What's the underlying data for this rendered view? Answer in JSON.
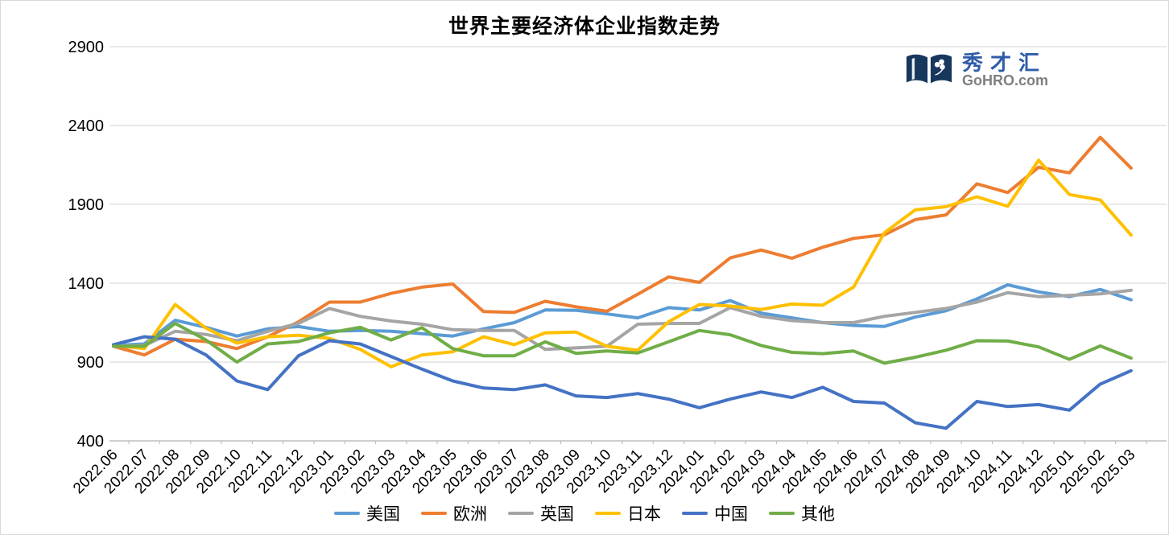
{
  "header": {
    "title": "世界主要经济体企业指数走势"
  },
  "logo": {
    "icon": "open-book-clover-icon",
    "brand": "秀才汇",
    "domain": "GoHRO.com",
    "brand_color": "#2e5ca8",
    "domain_color": "#7f7f7f",
    "book_color": "#17375d"
  },
  "chart_data": {
    "type": "line",
    "title": "世界主要经济体企业指数走势",
    "xlabel": "",
    "ylabel": "",
    "ylim": [
      400,
      2900
    ],
    "yticks": [
      400,
      900,
      1400,
      1900,
      2400,
      2900
    ],
    "grid": "horizontal",
    "gridline_color": "#d9d9d9",
    "axis_line_color": "#bfbfbf",
    "legend_position": "bottom",
    "x_tick_rotation": -45,
    "categories": [
      "2022.06",
      "2022.07",
      "2022.08",
      "2022.09",
      "2022.10",
      "2022.11",
      "2022.12",
      "2023.01",
      "2023.02",
      "2023.03",
      "2023.04",
      "2023.05",
      "2023.06",
      "2023.07",
      "2023.08",
      "2023.09",
      "2023.10",
      "2023.11",
      "2023.12",
      "2024.01",
      "2024.02",
      "2024.03",
      "2024.04",
      "2024.05",
      "2024.06",
      "2024.07",
      "2024.08",
      "2024.09",
      "2024.10",
      "2024.11",
      "2024.12",
      "2025.01",
      "2025.02",
      "2025.03"
    ],
    "series": [
      {
        "name": "美国",
        "color": "#5b9bd5",
        "values": [
          1005,
          1015,
          1165,
          1120,
          1065,
          1110,
          1125,
          1095,
          1100,
          1095,
          1080,
          1065,
          1110,
          1150,
          1230,
          1228,
          1205,
          1180,
          1245,
          1230,
          1290,
          1210,
          1180,
          1150,
          1132,
          1126,
          1185,
          1225,
          1300,
          1390,
          1345,
          1315,
          1360,
          1295
        ]
      },
      {
        "name": "欧洲",
        "color": "#ed7d31",
        "values": [
          1000,
          945,
          1045,
          1030,
          985,
          1060,
          1155,
          1280,
          1280,
          1335,
          1375,
          1395,
          1220,
          1215,
          1285,
          1250,
          1222,
          1330,
          1440,
          1405,
          1560,
          1610,
          1558,
          1628,
          1684,
          1707,
          1803,
          1833,
          2030,
          1975,
          2135,
          2100,
          2325,
          2130
        ]
      },
      {
        "name": "英国",
        "color": "#a5a5a5",
        "values": [
          1000,
          1005,
          1095,
          1075,
          1035,
          1095,
          1145,
          1240,
          1190,
          1160,
          1140,
          1105,
          1100,
          1100,
          980,
          990,
          1000,
          1140,
          1145,
          1145,
          1245,
          1190,
          1163,
          1150,
          1150,
          1190,
          1215,
          1240,
          1280,
          1340,
          1315,
          1323,
          1332,
          1355
        ]
      },
      {
        "name": "日本",
        "color": "#ffc000",
        "values": [
          1005,
          985,
          1265,
          1115,
          1020,
          1060,
          1070,
          1050,
          980,
          870,
          945,
          965,
          1060,
          1010,
          1085,
          1090,
          1000,
          975,
          1155,
          1265,
          1255,
          1233,
          1268,
          1260,
          1375,
          1720,
          1865,
          1885,
          1948,
          1888,
          2180,
          1962,
          1928,
          1705
        ]
      },
      {
        "name": "中国",
        "color": "#4472c4",
        "values": [
          1010,
          1060,
          1045,
          945,
          780,
          725,
          940,
          1035,
          1015,
          935,
          855,
          780,
          735,
          725,
          755,
          685,
          675,
          700,
          665,
          610,
          665,
          710,
          675,
          740,
          650,
          640,
          515,
          480,
          650,
          618,
          630,
          595,
          760,
          845
        ]
      },
      {
        "name": "其他",
        "color": "#70ad47",
        "values": [
          1000,
          1000,
          1145,
          1040,
          900,
          1015,
          1030,
          1085,
          1120,
          1040,
          1118,
          985,
          940,
          940,
          1028,
          955,
          970,
          957,
          1028,
          1100,
          1073,
          1005,
          961,
          953,
          970,
          893,
          930,
          975,
          1035,
          1033,
          996,
          917,
          1002,
          925
        ]
      }
    ]
  }
}
